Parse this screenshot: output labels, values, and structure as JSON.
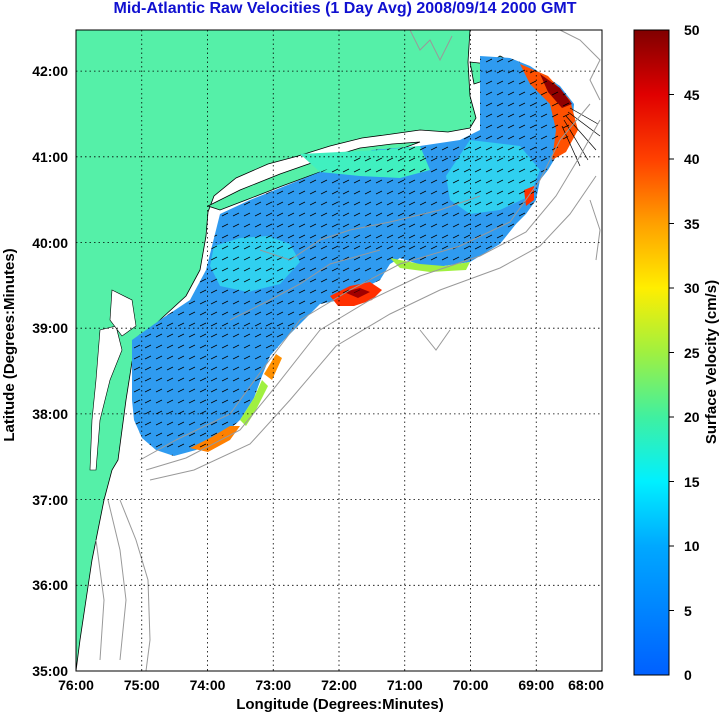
{
  "title": "Mid-Atlantic Raw Velocities (1 Day Avg) 2008/09/14 2000 GMT",
  "x_axis": {
    "label": "Longitude (Degrees:Minutes)",
    "ticks": [
      "76:00",
      "75:00",
      "74:00",
      "73:00",
      "72:00",
      "71:00",
      "70:00",
      "69:00",
      "68:00"
    ]
  },
  "y_axis": {
    "label": "Latitude (Degrees:Minutes)",
    "ticks": [
      "35:00",
      "36:00",
      "37:00",
      "38:00",
      "39:00",
      "40:00",
      "41:00",
      "42:00"
    ]
  },
  "colorbar": {
    "label": "Surface Velocity (cm/s)",
    "ticks": [
      "0",
      "5",
      "10",
      "15",
      "20",
      "25",
      "30",
      "35",
      "40",
      "45",
      "50"
    ],
    "range": [
      0,
      50
    ]
  },
  "colors": {
    "land": "#55f0a8",
    "title": "#1010d0",
    "bathymetry": "#999999"
  }
}
